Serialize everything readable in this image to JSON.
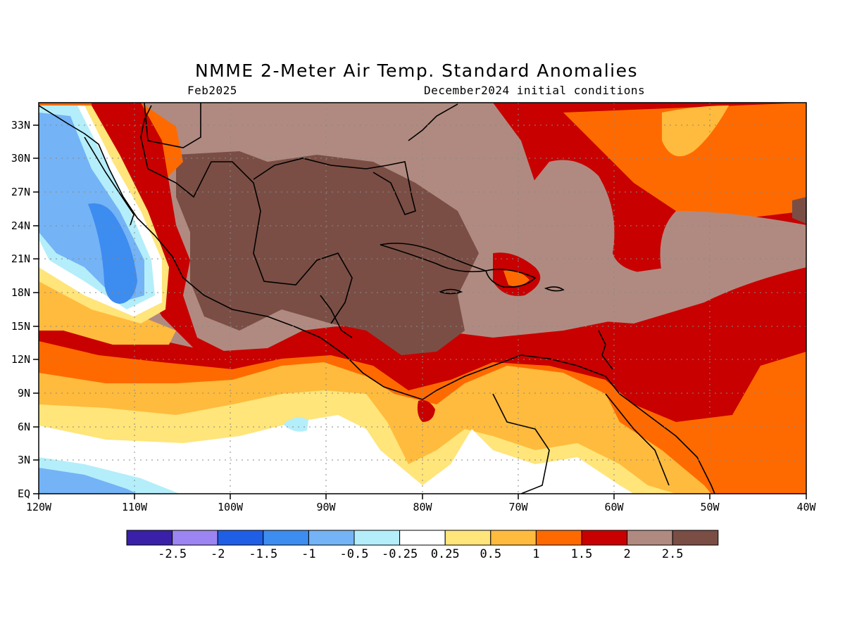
{
  "header": {
    "title": "NMME 2-Meter Air Temp. Standard Anomalies",
    "valid_month": "Feb2025",
    "init": "December2024 initial conditions"
  },
  "axes": {
    "lon_labels": [
      "120W",
      "110W",
      "100W",
      "90W",
      "80W",
      "70W",
      "60W",
      "50W",
      "40W"
    ],
    "lat_labels": [
      "EQ",
      "3N",
      "6N",
      "9N",
      "12N",
      "15N",
      "18N",
      "21N",
      "24N",
      "27N",
      "30N",
      "33N"
    ],
    "lon_range": [
      -120,
      -40
    ],
    "lat_range": [
      0,
      35
    ]
  },
  "colorbar": {
    "colors": [
      "#3a1fa8",
      "#9c84f2",
      "#1f5fe6",
      "#3d8cf0",
      "#74b3f5",
      "#b4eefa",
      "#ffffff",
      "#ffe57a",
      "#ffbb3d",
      "#ff6a00",
      "#c80000",
      "#b08a80",
      "#7a4e45"
    ],
    "labels": [
      "-2.5",
      "-2",
      "-1.5",
      "-1",
      "-0.5",
      "-0.25",
      "0.25",
      "0.5",
      "1",
      "1.5",
      "2",
      "2.5"
    ]
  }
}
